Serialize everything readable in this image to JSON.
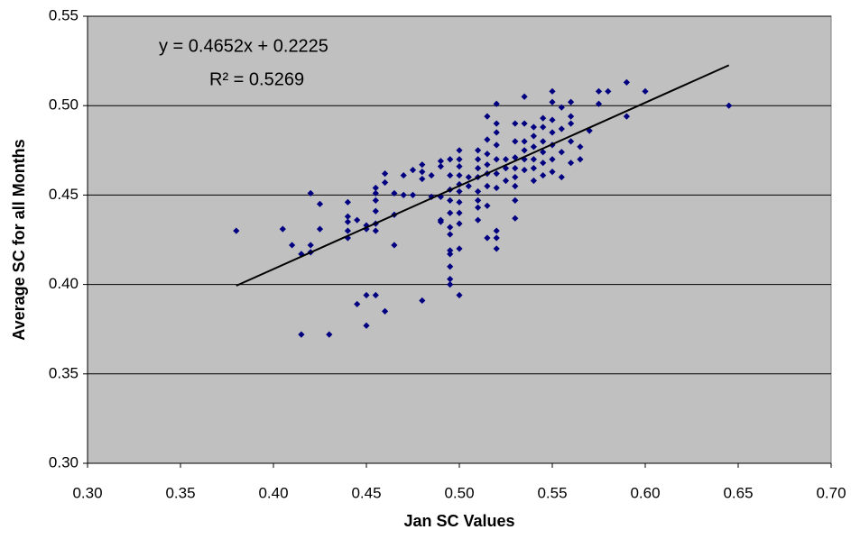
{
  "chart_data": {
    "type": "scatter",
    "x_label": "Jan SC Values",
    "y_label": "Average SC for all Months",
    "annotations": [
      "y = 0.4652x + 0.2225",
      "R² = 0.5269"
    ],
    "xlim": [
      0.3,
      0.7
    ],
    "ylim": [
      0.3,
      0.55
    ],
    "xticks": [
      {
        "value": 0.3,
        "label": "0.30"
      },
      {
        "value": 0.35,
        "label": "0.35"
      },
      {
        "value": 0.4,
        "label": "0.40"
      },
      {
        "value": 0.45,
        "label": "0.45"
      },
      {
        "value": 0.5,
        "label": "0.50"
      },
      {
        "value": 0.55,
        "label": "0.55"
      },
      {
        "value": 0.6,
        "label": "0.60"
      },
      {
        "value": 0.65,
        "label": "0.65"
      },
      {
        "value": 0.7,
        "label": "0.70"
      }
    ],
    "yticks": [
      {
        "value": 0.3,
        "label": "0.30"
      },
      {
        "value": 0.35,
        "label": "0.35"
      },
      {
        "value": 0.4,
        "label": "0.40"
      },
      {
        "value": 0.45,
        "label": "0.45"
      },
      {
        "value": 0.5,
        "label": "0.50"
      },
      {
        "value": 0.55,
        "label": "0.55"
      }
    ],
    "grid": true,
    "color": "#000080",
    "trendline": {
      "color": "#000000",
      "x": [
        0.38,
        0.645
      ],
      "y": [
        0.3993,
        0.5226
      ]
    },
    "x": [
      0.38,
      0.405,
      0.41,
      0.415,
      0.42,
      0.42,
      0.42,
      0.425,
      0.425,
      0.415,
      0.43,
      0.44,
      0.44,
      0.44,
      0.44,
      0.44,
      0.445,
      0.445,
      0.45,
      0.45,
      0.45,
      0.45,
      0.455,
      0.455,
      0.455,
      0.455,
      0.455,
      0.455,
      0.455,
      0.46,
      0.46,
      0.46,
      0.465,
      0.465,
      0.465,
      0.47,
      0.47,
      0.475,
      0.475,
      0.48,
      0.48,
      0.48,
      0.48,
      0.485,
      0.485,
      0.49,
      0.49,
      0.49,
      0.49,
      0.49,
      0.495,
      0.495,
      0.495,
      0.495,
      0.495,
      0.495,
      0.495,
      0.495,
      0.495,
      0.495,
      0.495,
      0.495,
      0.5,
      0.5,
      0.5,
      0.5,
      0.5,
      0.5,
      0.5,
      0.5,
      0.5,
      0.5,
      0.5,
      0.505,
      0.505,
      0.51,
      0.51,
      0.51,
      0.51,
      0.51,
      0.51,
      0.51,
      0.51,
      0.515,
      0.515,
      0.515,
      0.515,
      0.515,
      0.515,
      0.515,
      0.515,
      0.52,
      0.52,
      0.52,
      0.52,
      0.52,
      0.52,
      0.52,
      0.52,
      0.52,
      0.52,
      0.525,
      0.525,
      0.525,
      0.53,
      0.53,
      0.53,
      0.53,
      0.53,
      0.53,
      0.53,
      0.53,
      0.535,
      0.535,
      0.535,
      0.535,
      0.535,
      0.535,
      0.54,
      0.54,
      0.54,
      0.54,
      0.54,
      0.54,
      0.545,
      0.545,
      0.545,
      0.545,
      0.545,
      0.545,
      0.55,
      0.55,
      0.55,
      0.55,
      0.55,
      0.55,
      0.55,
      0.555,
      0.555,
      0.555,
      0.555,
      0.56,
      0.56,
      0.56,
      0.56,
      0.56,
      0.565,
      0.565,
      0.57,
      0.575,
      0.575,
      0.58,
      0.59,
      0.59,
      0.6,
      0.645
    ],
    "y": [
      0.43,
      0.431,
      0.422,
      0.417,
      0.451,
      0.422,
      0.418,
      0.445,
      0.431,
      0.372,
      0.372,
      0.446,
      0.438,
      0.435,
      0.43,
      0.426,
      0.436,
      0.389,
      0.433,
      0.431,
      0.394,
      0.377,
      0.454,
      0.451,
      0.447,
      0.441,
      0.434,
      0.43,
      0.394,
      0.462,
      0.457,
      0.385,
      0.451,
      0.439,
      0.422,
      0.461,
      0.45,
      0.464,
      0.45,
      0.467,
      0.463,
      0.459,
      0.391,
      0.461,
      0.449,
      0.469,
      0.466,
      0.449,
      0.436,
      0.435,
      0.47,
      0.461,
      0.453,
      0.447,
      0.44,
      0.432,
      0.428,
      0.419,
      0.417,
      0.41,
      0.403,
      0.4,
      0.475,
      0.47,
      0.466,
      0.461,
      0.456,
      0.452,
      0.446,
      0.44,
      0.434,
      0.42,
      0.394,
      0.46,
      0.455,
      0.475,
      0.47,
      0.465,
      0.46,
      0.452,
      0.447,
      0.443,
      0.436,
      0.494,
      0.481,
      0.473,
      0.467,
      0.462,
      0.455,
      0.444,
      0.426,
      0.501,
      0.49,
      0.485,
      0.478,
      0.47,
      0.462,
      0.454,
      0.43,
      0.426,
      0.42,
      0.47,
      0.465,
      0.458,
      0.49,
      0.48,
      0.471,
      0.465,
      0.46,
      0.455,
      0.447,
      0.437,
      0.505,
      0.49,
      0.48,
      0.475,
      0.47,
      0.464,
      0.488,
      0.483,
      0.477,
      0.47,
      0.465,
      0.458,
      0.493,
      0.488,
      0.48,
      0.474,
      0.468,
      0.461,
      0.508,
      0.502,
      0.492,
      0.485,
      0.478,
      0.47,
      0.463,
      0.499,
      0.487,
      0.474,
      0.46,
      0.502,
      0.494,
      0.49,
      0.48,
      0.468,
      0.477,
      0.47,
      0.486,
      0.508,
      0.501,
      0.508,
      0.513,
      0.494,
      0.508,
      0.5
    ]
  }
}
